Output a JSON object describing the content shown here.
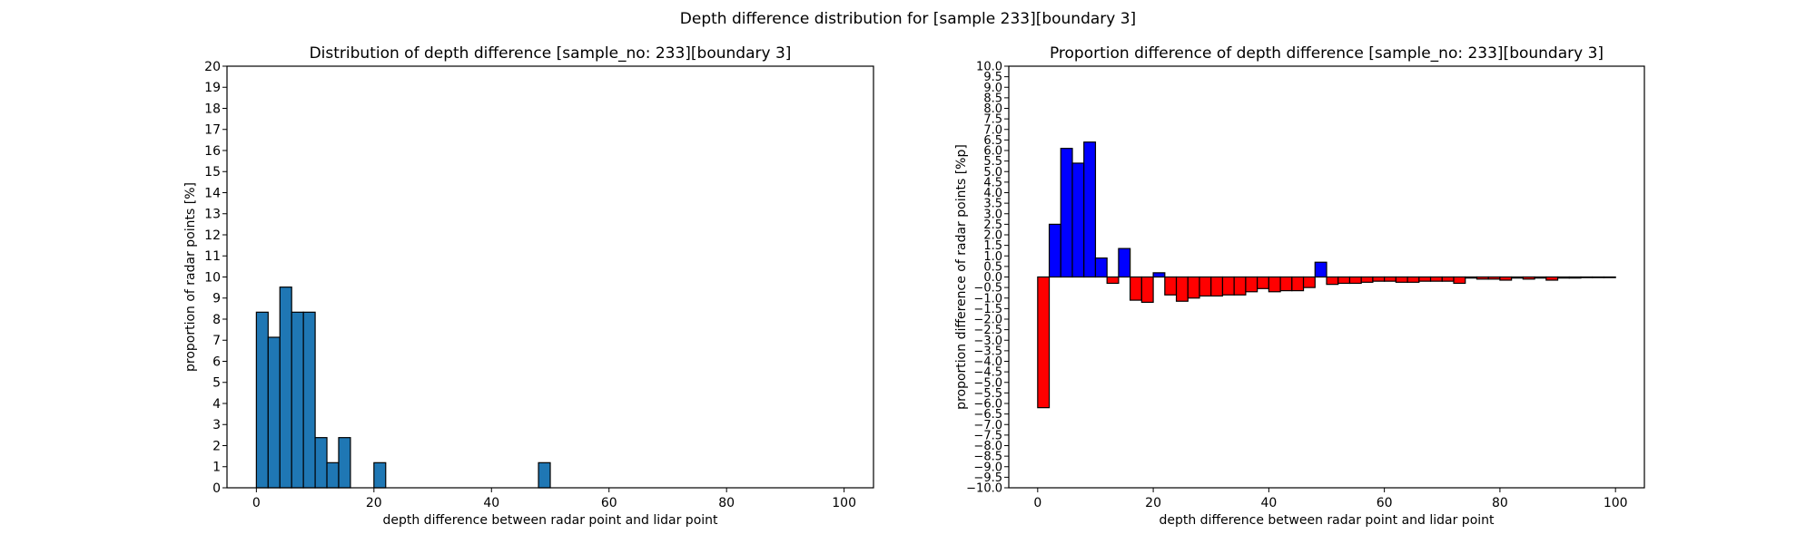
{
  "suptitle": "Depth difference distribution for [sample 233][boundary 3]",
  "chart_data": [
    {
      "type": "bar",
      "title": "Distribution of depth difference [sample_no: 233][boundary 3]",
      "xlabel": "depth difference between radar point and lidar point",
      "ylabel": "proportion of radar points [%]",
      "xlim": [
        -5,
        105
      ],
      "ylim": [
        0,
        20
      ],
      "xticks": [
        0,
        20,
        40,
        60,
        80,
        100
      ],
      "yticks": [
        0,
        1,
        2,
        3,
        4,
        5,
        6,
        7,
        8,
        9,
        10,
        11,
        12,
        13,
        14,
        15,
        16,
        17,
        18,
        19,
        20
      ],
      "bin_width": 2,
      "bar_color": "#1f77b4",
      "bars": [
        {
          "x": 0,
          "value": 8.33
        },
        {
          "x": 2,
          "value": 7.14
        },
        {
          "x": 4,
          "value": 9.52
        },
        {
          "x": 6,
          "value": 8.33
        },
        {
          "x": 8,
          "value": 8.33
        },
        {
          "x": 10,
          "value": 2.38
        },
        {
          "x": 12,
          "value": 1.19
        },
        {
          "x": 14,
          "value": 2.38
        },
        {
          "x": 20,
          "value": 1.19
        },
        {
          "x": 48,
          "value": 1.19
        }
      ]
    },
    {
      "type": "bar",
      "title": "Proportion difference of depth difference [sample_no: 233][boundary 3]",
      "xlabel": "depth difference between radar point and lidar point",
      "ylabel": "proportion difference of radar points [%p]",
      "xlim": [
        -5,
        105
      ],
      "ylim": [
        -10,
        10
      ],
      "xticks": [
        0,
        20,
        40,
        60,
        80,
        100
      ],
      "yticks": [
        -10,
        -9.5,
        -9,
        -8.5,
        -8,
        -7.5,
        -7,
        -6.5,
        -6,
        -5.5,
        -5,
        -4.5,
        -4,
        -3.5,
        -3,
        -2.5,
        -2,
        -1.5,
        -1,
        -0.5,
        0,
        0.5,
        1,
        1.5,
        2,
        2.5,
        3,
        3.5,
        4,
        4.5,
        5,
        5.5,
        6,
        6.5,
        7,
        7.5,
        8,
        8.5,
        9,
        9.5,
        10
      ],
      "bin_width": 2,
      "positive_color": "#0000ff",
      "negative_color": "#ff0000",
      "bars": [
        {
          "x": 0,
          "value": -6.2
        },
        {
          "x": 2,
          "value": 2.5
        },
        {
          "x": 4,
          "value": 6.1
        },
        {
          "x": 6,
          "value": 5.4
        },
        {
          "x": 8,
          "value": 6.4
        },
        {
          "x": 10,
          "value": 0.9
        },
        {
          "x": 12,
          "value": -0.3
        },
        {
          "x": 14,
          "value": 1.35
        },
        {
          "x": 16,
          "value": -1.1
        },
        {
          "x": 18,
          "value": -1.2
        },
        {
          "x": 20,
          "value": 0.2
        },
        {
          "x": 22,
          "value": -0.85
        },
        {
          "x": 24,
          "value": -1.15
        },
        {
          "x": 26,
          "value": -1.0
        },
        {
          "x": 28,
          "value": -0.9
        },
        {
          "x": 30,
          "value": -0.9
        },
        {
          "x": 32,
          "value": -0.85
        },
        {
          "x": 34,
          "value": -0.85
        },
        {
          "x": 36,
          "value": -0.7
        },
        {
          "x": 38,
          "value": -0.55
        },
        {
          "x": 40,
          "value": -0.7
        },
        {
          "x": 42,
          "value": -0.65
        },
        {
          "x": 44,
          "value": -0.65
        },
        {
          "x": 46,
          "value": -0.5
        },
        {
          "x": 48,
          "value": 0.7
        },
        {
          "x": 50,
          "value": -0.35
        },
        {
          "x": 52,
          "value": -0.3
        },
        {
          "x": 54,
          "value": -0.3
        },
        {
          "x": 56,
          "value": -0.25
        },
        {
          "x": 58,
          "value": -0.2
        },
        {
          "x": 60,
          "value": -0.2
        },
        {
          "x": 62,
          "value": -0.25
        },
        {
          "x": 64,
          "value": -0.25
        },
        {
          "x": 66,
          "value": -0.2
        },
        {
          "x": 68,
          "value": -0.2
        },
        {
          "x": 70,
          "value": -0.2
        },
        {
          "x": 72,
          "value": -0.3
        },
        {
          "x": 74,
          "value": -0.05
        },
        {
          "x": 76,
          "value": -0.1
        },
        {
          "x": 78,
          "value": -0.1
        },
        {
          "x": 80,
          "value": -0.15
        },
        {
          "x": 82,
          "value": -0.05
        },
        {
          "x": 84,
          "value": -0.1
        },
        {
          "x": 86,
          "value": -0.05
        },
        {
          "x": 88,
          "value": -0.15
        },
        {
          "x": 90,
          "value": -0.05
        },
        {
          "x": 92,
          "value": -0.05
        },
        {
          "x": 94,
          "value": -0.03
        },
        {
          "x": 96,
          "value": -0.03
        },
        {
          "x": 98,
          "value": -0.03
        }
      ]
    }
  ]
}
